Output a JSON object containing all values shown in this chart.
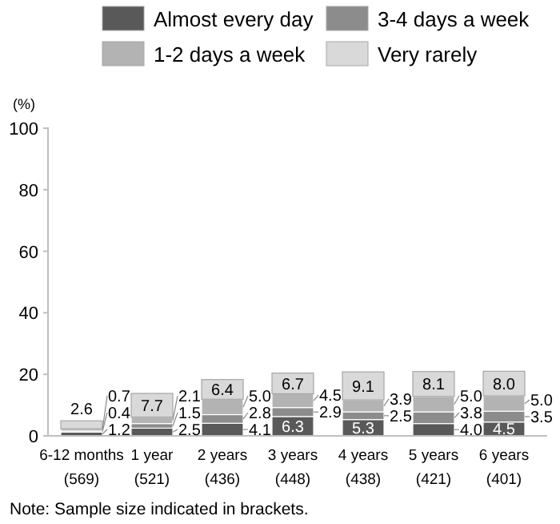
{
  "chart_data": {
    "type": "bar",
    "stacked": true,
    "ylabel": "(%)",
    "categories": [
      "6-12 months\n(569)",
      "1 year\n(521)",
      "2 years\n(436)",
      "3 years\n(448)",
      "4 years\n(438)",
      "5 years\n(421)",
      "6 years\n(401)"
    ],
    "series": [
      {
        "name": "Almost every day",
        "color": "#595959",
        "values": [
          1.2,
          2.5,
          4.1,
          6.3,
          5.3,
          4.0,
          4.5
        ],
        "value_labels": [
          "1.2",
          "2.5",
          "4.1",
          "6.3",
          "5.3",
          "4.0",
          "4.5"
        ]
      },
      {
        "name": "3-4 days a week",
        "color": "#8c8c8c",
        "values": [
          0.4,
          1.5,
          2.8,
          2.9,
          2.5,
          3.8,
          3.5
        ],
        "value_labels": [
          "0.4",
          "1.5",
          "2.8",
          "2.9",
          "2.5",
          "3.8",
          "3.5"
        ]
      },
      {
        "name": "1-2 days a week",
        "color": "#b3b3b3",
        "values": [
          0.7,
          2.1,
          5.0,
          4.5,
          3.9,
          5.0,
          5.0
        ],
        "value_labels": [
          "0.7",
          "2.1",
          "5.0",
          "4.5",
          "3.9",
          "5.0",
          "5.0"
        ]
      },
      {
        "name": "Very rarely",
        "color": "#d9d9d9",
        "values": [
          2.6,
          7.7,
          6.4,
          6.7,
          9.1,
          8.1,
          8.0
        ],
        "value_labels": [
          "2.6",
          "7.7",
          "6.4",
          "6.7",
          "9.1",
          "8.1",
          "8.0"
        ]
      }
    ],
    "ylim": [
      0,
      100
    ],
    "yticks": [
      0,
      20,
      40,
      60,
      80,
      100
    ],
    "grid": false,
    "legend": "top",
    "annotations": [
      "Note: Sample size indicated in brackets."
    ]
  }
}
